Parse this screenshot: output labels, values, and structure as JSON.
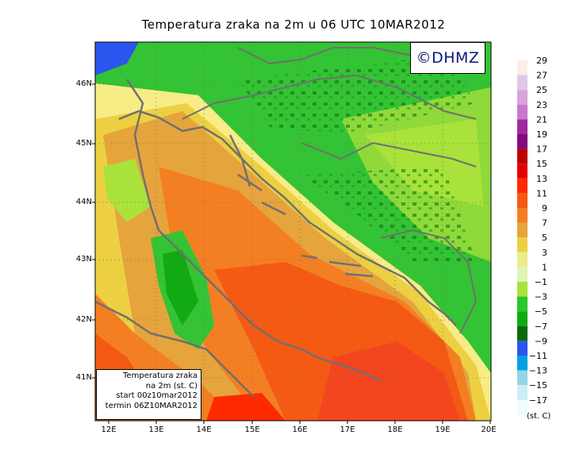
{
  "title": "Temperatura zraka na 2m u 06 UTC 10MAR2012",
  "logo": "©DHMZ",
  "info_box": {
    "line1": "Temperatura zraka",
    "line2": "na 2m (st. C)",
    "line3": "start 00z10mar2012",
    "line4": "termin 06Z10MAR2012"
  },
  "lat_labels": [
    "46N",
    "45N",
    "44N",
    "43N",
    "42N",
    "41N"
  ],
  "lon_labels": [
    "12E",
    "13E",
    "14E",
    "15E",
    "16E",
    "17E",
    "18E",
    "19E",
    "20E"
  ],
  "legend": {
    "unit": "(st. C)",
    "labels": [
      "29",
      "27",
      "25",
      "23",
      "21",
      "19",
      "17",
      "15",
      "13",
      "11",
      "9",
      "7",
      "5",
      "3",
      "1",
      "−1",
      "−3",
      "−5",
      "−7",
      "−9",
      "−11",
      "−13",
      "−15",
      "−17"
    ],
    "colors": [
      "#fbeee6",
      "#e2c8e6",
      "#d8a4dc",
      "#c878cd",
      "#a02aa0",
      "#820a7a",
      "#c00000",
      "#e40000",
      "#ff2a00",
      "#f45a14",
      "#f47f23",
      "#e6a43c",
      "#ecd042",
      "#ecec8a",
      "#dff4b4",
      "#a9e23a",
      "#28c828",
      "#12aa12",
      "#0a6a0a",
      "#2a55ee",
      "#00a2e4",
      "#96d4e6",
      "#cceef4",
      "#f0fbfd"
    ]
  }
}
